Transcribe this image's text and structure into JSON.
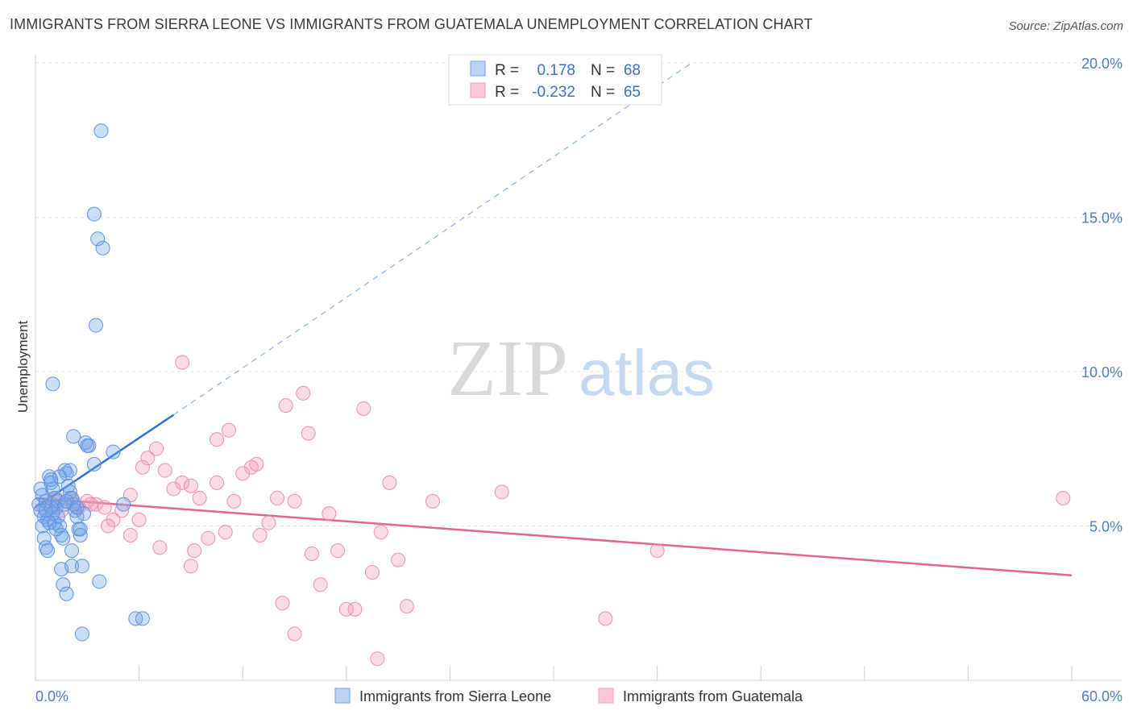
{
  "title": "IMMIGRANTS FROM SIERRA LEONE VS IMMIGRANTS FROM GUATEMALA UNEMPLOYMENT CORRELATION CHART",
  "source": "Source: ZipAtlas.com",
  "watermark": {
    "zip": "ZIP",
    "atlas": "atlas"
  },
  "colors": {
    "blue": "#6fa3e8",
    "blue_line": "#2f6fcf",
    "pink": "#f29bb8",
    "pink_line": "#e0668f",
    "tick": "#4a7ec9",
    "grid": "#e3e3e3"
  },
  "chart_data": {
    "type": "scatter",
    "xlabel": "",
    "ylabel": "Unemployment",
    "xlim": [
      0,
      60
    ],
    "ylim": [
      0,
      20
    ],
    "x_tick_labels": [
      "0.0%",
      "60.0%"
    ],
    "y_ticks": [
      5,
      10,
      15,
      20
    ],
    "y_tick_labels": [
      "5.0%",
      "10.0%",
      "15.0%",
      "20.0%"
    ],
    "grid": "horizontal dashed",
    "legend_position": "top-center",
    "stats_legend": [
      {
        "r_label": "R =",
        "r_value": "0.178",
        "n_label": "N =",
        "n_value": "68"
      },
      {
        "r_label": "R =",
        "r_value": "-0.232",
        "n_label": "N =",
        "n_value": "65"
      }
    ],
    "series": [
      {
        "name": "Immigrants from Sierra Leone",
        "color": "#6fa3e8",
        "trend": {
          "x": [
            0,
            8
          ],
          "y": [
            5.6,
            8.6
          ],
          "extended_x": [
            8,
            38
          ],
          "extended_y": [
            8.6,
            20
          ]
        },
        "points": [
          [
            0.2,
            5.7
          ],
          [
            0.3,
            5.5
          ],
          [
            0.4,
            6.0
          ],
          [
            0.5,
            5.3
          ],
          [
            0.6,
            5.8
          ],
          [
            0.7,
            5.2
          ],
          [
            0.3,
            6.2
          ],
          [
            0.8,
            6.6
          ],
          [
            0.9,
            6.4
          ],
          [
            1.0,
            6.2
          ],
          [
            1.1,
            5.9
          ],
          [
            1.2,
            5.6
          ],
          [
            0.4,
            5.0
          ],
          [
            0.5,
            4.6
          ],
          [
            0.6,
            4.3
          ],
          [
            0.7,
            4.2
          ],
          [
            1.3,
            5.3
          ],
          [
            1.4,
            5.0
          ],
          [
            1.5,
            4.7
          ],
          [
            1.6,
            4.6
          ],
          [
            1.7,
            6.8
          ],
          [
            1.8,
            6.7
          ],
          [
            1.9,
            6.3
          ],
          [
            2.0,
            6.1
          ],
          [
            2.1,
            5.9
          ],
          [
            2.2,
            5.7
          ],
          [
            2.3,
            5.5
          ],
          [
            2.4,
            5.3
          ],
          [
            2.5,
            4.9
          ],
          [
            2.6,
            4.7
          ],
          [
            1.1,
            5.1
          ],
          [
            1.2,
            4.9
          ],
          [
            0.9,
            5.6
          ],
          [
            1.0,
            5.4
          ],
          [
            1.5,
            3.6
          ],
          [
            1.6,
            3.1
          ],
          [
            1.8,
            2.8
          ],
          [
            2.1,
            4.2
          ],
          [
            2.1,
            3.7
          ],
          [
            2.7,
            3.7
          ],
          [
            2.2,
            7.9
          ],
          [
            2.9,
            7.7
          ],
          [
            3.1,
            7.6
          ],
          [
            3.0,
            7.6
          ],
          [
            3.7,
            3.2
          ],
          [
            2.7,
            1.5
          ],
          [
            3.4,
            7.0
          ],
          [
            4.5,
            7.4
          ],
          [
            5.1,
            5.7
          ],
          [
            5.8,
            2.0
          ],
          [
            6.2,
            2.0
          ],
          [
            3.9,
            14.0
          ],
          [
            3.6,
            14.3
          ],
          [
            3.4,
            15.1
          ],
          [
            2.6,
            4.9
          ],
          [
            3.8,
            17.8
          ],
          [
            3.5,
            11.5
          ],
          [
            1.0,
            9.6
          ],
          [
            1.3,
            5.8
          ],
          [
            0.8,
            5.1
          ],
          [
            1.7,
            5.7
          ],
          [
            2.0,
            6.8
          ],
          [
            1.4,
            6.6
          ],
          [
            0.6,
            5.5
          ],
          [
            0.9,
            6.5
          ],
          [
            1.8,
            5.8
          ],
          [
            2.4,
            5.6
          ],
          [
            2.8,
            5.4
          ]
        ]
      },
      {
        "name": "Immigrants from Guatemala",
        "color": "#f29bb8",
        "trend": {
          "x": [
            0,
            60
          ],
          "y": [
            5.9,
            3.4
          ]
        },
        "points": [
          [
            0.5,
            5.6
          ],
          [
            1.0,
            5.7
          ],
          [
            1.5,
            5.5
          ],
          [
            2.0,
            5.9
          ],
          [
            2.5,
            5.6
          ],
          [
            3.0,
            5.8
          ],
          [
            3.5,
            5.7
          ],
          [
            4.0,
            5.6
          ],
          [
            4.5,
            5.2
          ],
          [
            5.0,
            5.5
          ],
          [
            5.5,
            6.0
          ],
          [
            6.0,
            5.2
          ],
          [
            6.5,
            7.2
          ],
          [
            7.0,
            7.5
          ],
          [
            7.5,
            6.8
          ],
          [
            8.0,
            6.2
          ],
          [
            8.5,
            6.4
          ],
          [
            9.0,
            6.3
          ],
          [
            9.5,
            5.9
          ],
          [
            10.0,
            4.6
          ],
          [
            10.5,
            6.4
          ],
          [
            11.0,
            4.8
          ],
          [
            11.5,
            5.8
          ],
          [
            12.0,
            6.7
          ],
          [
            12.5,
            6.9
          ],
          [
            13.0,
            4.7
          ],
          [
            13.5,
            5.1
          ],
          [
            14.0,
            5.9
          ],
          [
            14.5,
            8.9
          ],
          [
            15.0,
            5.8
          ],
          [
            15.5,
            9.3
          ],
          [
            16.0,
            4.1
          ],
          [
            16.5,
            3.1
          ],
          [
            17.0,
            5.4
          ],
          [
            17.5,
            4.2
          ],
          [
            18.0,
            2.3
          ],
          [
            18.5,
            2.3
          ],
          [
            19.0,
            8.8
          ],
          [
            19.5,
            3.5
          ],
          [
            20.0,
            4.8
          ],
          [
            20.5,
            6.4
          ],
          [
            21.0,
            3.9
          ],
          [
            21.5,
            2.4
          ],
          [
            23.0,
            5.8
          ],
          [
            27.0,
            6.1
          ],
          [
            33.0,
            2.0
          ],
          [
            36.0,
            4.2
          ],
          [
            59.5,
            5.9
          ],
          [
            8.5,
            10.3
          ],
          [
            10.5,
            7.8
          ],
          [
            11.2,
            8.1
          ],
          [
            14.3,
            2.5
          ],
          [
            15.8,
            8.0
          ],
          [
            19.8,
            0.7
          ],
          [
            7.2,
            4.3
          ],
          [
            9.2,
            4.2
          ],
          [
            6.2,
            6.9
          ],
          [
            5.5,
            4.7
          ],
          [
            4.2,
            5.0
          ],
          [
            3.2,
            5.7
          ],
          [
            2.2,
            5.8
          ],
          [
            1.2,
            5.9
          ],
          [
            9.0,
            3.7
          ],
          [
            12.8,
            7.0
          ],
          [
            15.0,
            1.5
          ]
        ]
      }
    ]
  }
}
